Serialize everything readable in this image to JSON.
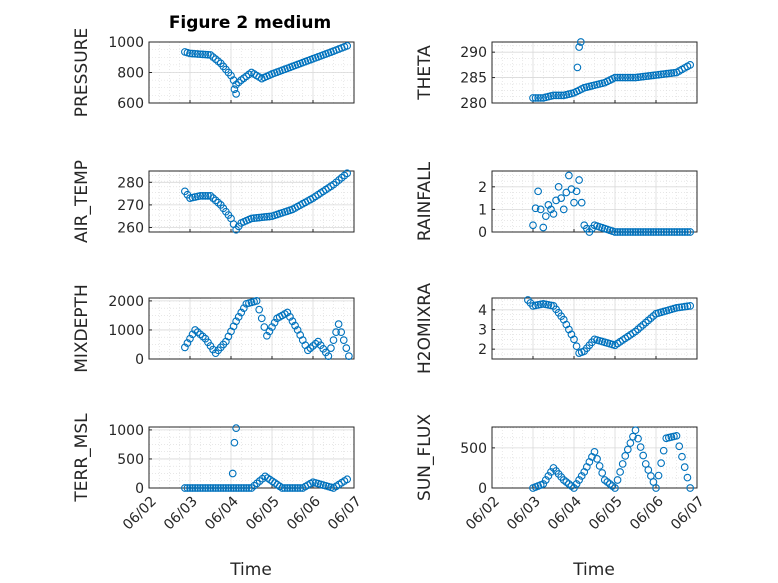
{
  "figure_title": "Figure 2 medium",
  "shared_xlabel": "Time",
  "colors": {
    "marker": "#0072BD",
    "axis": "#262626",
    "grid": "#d9d9d9"
  },
  "chart_data": [
    {
      "type": "scatter",
      "ylabel": "PRESSURE",
      "ylim": [
        600,
        1000
      ],
      "yticks": [
        600,
        800,
        1000
      ],
      "x": [
        "06/02 21:00",
        "06/03 00:00",
        "06/03 06:00",
        "06/03 12:00",
        "06/03 18:00",
        "06/04 00:00",
        "06/04 03:00",
        "06/04 06:00",
        "06/04 12:00",
        "06/04 18:00",
        "06/05 00:00",
        "06/05 12:00",
        "06/06 00:00",
        "06/06 12:00",
        "06/06 20:00"
      ],
      "y": [
        935,
        925,
        920,
        915,
        860,
        780,
        720,
        750,
        800,
        760,
        790,
        840,
        890,
        940,
        975
      ],
      "outliers": [
        {
          "x": "06/04 02:00",
          "y": 690
        },
        {
          "x": "06/04 03:00",
          "y": 660
        }
      ]
    },
    {
      "type": "scatter",
      "ylabel": "THETA",
      "ylim": [
        280,
        292
      ],
      "yticks": [
        280,
        285,
        290
      ],
      "x": [
        "06/03 00:00",
        "06/03 06:00",
        "06/03 12:00",
        "06/03 18:00",
        "06/04 00:00",
        "06/04 06:00",
        "06/04 12:00",
        "06/04 18:00",
        "06/05 00:00",
        "06/05 12:00",
        "06/06 00:00",
        "06/06 12:00",
        "06/06 20:00"
      ],
      "y": [
        281,
        281,
        281.5,
        281.5,
        282,
        283,
        283.5,
        284,
        285,
        285,
        285.5,
        286,
        287.5
      ],
      "outliers": [
        {
          "x": "06/04 02:00",
          "y": 287
        },
        {
          "x": "06/04 03:00",
          "y": 291
        },
        {
          "x": "06/04 04:00",
          "y": 292
        }
      ]
    },
    {
      "type": "scatter",
      "ylabel": "AIR_TEMP",
      "ylim": [
        258,
        285
      ],
      "yticks": [
        260,
        270,
        280
      ],
      "x": [
        "06/02 21:00",
        "06/03 00:00",
        "06/03 06:00",
        "06/03 12:00",
        "06/03 18:00",
        "06/04 00:00",
        "06/04 03:00",
        "06/04 06:00",
        "06/04 12:00",
        "06/05 00:00",
        "06/05 12:00",
        "06/06 00:00",
        "06/06 12:00",
        "06/06 20:00"
      ],
      "y": [
        276,
        273,
        274,
        274,
        270,
        264,
        259,
        262,
        264,
        265,
        268,
        273,
        279,
        284
      ]
    },
    {
      "type": "scatter",
      "ylabel": "RAINFALL",
      "ylim": [
        0,
        2.7
      ],
      "yticks": [
        0,
        1,
        2
      ],
      "x": [
        "06/03 00:00",
        "06/03 03:00",
        "06/03 06:00",
        "06/03 09:00",
        "06/03 12:00",
        "06/03 15:00",
        "06/03 18:00",
        "06/03 21:00",
        "06/04 00:00",
        "06/04 03:00",
        "06/04 06:00",
        "06/04 09:00",
        "06/04 12:00",
        "06/05 00:00",
        "06/06 00:00",
        "06/06 20:00"
      ],
      "y": [
        0.3,
        1.8,
        0.2,
        1.2,
        0.8,
        2.0,
        1.0,
        2.5,
        1.3,
        2.3,
        0.3,
        0,
        0.3,
        0,
        0,
        0
      ]
    },
    {
      "type": "scatter",
      "ylabel": "MIXDEPTH",
      "ylim": [
        0,
        2100
      ],
      "yticks": [
        0,
        1000,
        2000
      ],
      "x": [
        "06/02 21:00",
        "06/03 03:00",
        "06/03 09:00",
        "06/03 15:00",
        "06/03 21:00",
        "06/04 03:00",
        "06/04 09:00",
        "06/04 15:00",
        "06/04 21:00",
        "06/05 03:00",
        "06/05 09:00",
        "06/05 15:00",
        "06/05 21:00",
        "06/06 03:00",
        "06/06 09:00",
        "06/06 15:00",
        "06/06 21:00"
      ],
      "y": [
        400,
        1000,
        700,
        200,
        600,
        1300,
        1900,
        2000,
        800,
        1400,
        1600,
        1000,
        300,
        600,
        100,
        1200,
        100
      ]
    },
    {
      "type": "scatter",
      "ylabel": "H2OMIXRA",
      "ylim": [
        1.5,
        4.6
      ],
      "yticks": [
        2,
        3,
        4
      ],
      "x": [
        "06/02 21:00",
        "06/03 00:00",
        "06/03 06:00",
        "06/03 12:00",
        "06/03 18:00",
        "06/04 00:00",
        "06/04 03:00",
        "06/04 06:00",
        "06/04 12:00",
        "06/05 00:00",
        "06/05 12:00",
        "06/06 00:00",
        "06/06 12:00",
        "06/06 20:00"
      ],
      "y": [
        4.5,
        4.2,
        4.3,
        4.2,
        3.5,
        2.5,
        1.8,
        1.9,
        2.5,
        2.2,
        2.9,
        3.8,
        4.1,
        4.2
      ]
    },
    {
      "type": "scatter",
      "ylabel": "TERR_MSL",
      "ylim": [
        0,
        1050
      ],
      "yticks": [
        0,
        500,
        1000
      ],
      "x": [
        "06/02 21:00",
        "06/03 06:00",
        "06/03 18:00",
        "06/04 00:00",
        "06/04 12:00",
        "06/04 20:00",
        "06/05 06:00",
        "06/05 18:00",
        "06/06 00:00",
        "06/06 12:00",
        "06/06 20:00"
      ],
      "y": [
        0,
        0,
        0,
        0,
        0,
        200,
        0,
        0,
        100,
        0,
        150
      ],
      "outliers": [
        {
          "x": "06/04 01:00",
          "y": 250
        },
        {
          "x": "06/04 02:00",
          "y": 780
        },
        {
          "x": "06/04 03:00",
          "y": 1030
        }
      ]
    },
    {
      "type": "scatter",
      "ylabel": "SUN_FLUX",
      "ylim": [
        0,
        760
      ],
      "yticks": [
        0,
        500
      ],
      "x": [
        "06/03 00:00",
        "06/03 06:00",
        "06/03 12:00",
        "06/03 18:00",
        "06/04 00:00",
        "06/04 06:00",
        "06/04 12:00",
        "06/04 18:00",
        "06/05 00:00",
        "06/05 06:00",
        "06/05 12:00",
        "06/05 18:00",
        "06/06 00:00",
        "06/06 06:00",
        "06/06 12:00",
        "06/06 20:00"
      ],
      "y": [
        0,
        50,
        250,
        100,
        0,
        200,
        450,
        100,
        0,
        400,
        720,
        300,
        0,
        620,
        650,
        0
      ]
    }
  ],
  "x_ticks": [
    "06/02",
    "06/03",
    "06/04",
    "06/05",
    "06/06",
    "06/07"
  ]
}
